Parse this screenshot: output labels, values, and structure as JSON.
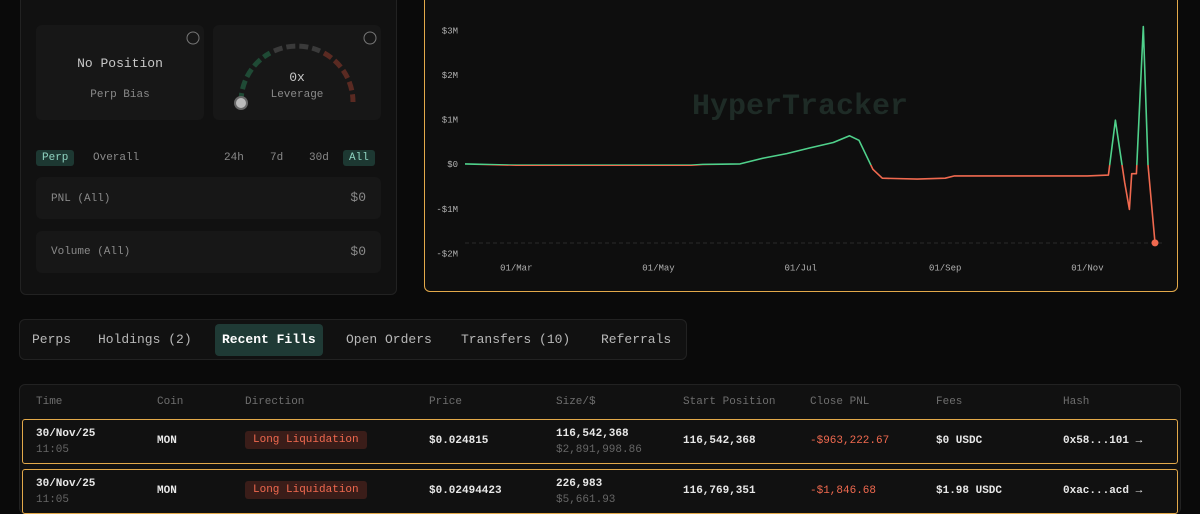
{
  "left_panel": {
    "position_card": {
      "title": "No Position",
      "label": "Perp Bias"
    },
    "leverage_card": {
      "value": "0x",
      "label": "Leverage"
    },
    "scope_tabs": [
      "Perp",
      "Overall"
    ],
    "range_tabs": [
      "24h",
      "7d",
      "30d",
      "All"
    ],
    "stats": [
      {
        "label": "PNL (All)",
        "value": "$0"
      },
      {
        "label": "Volume (All)",
        "value": "$0"
      }
    ]
  },
  "chart_data": {
    "type": "line",
    "watermark": "HyperTracker",
    "x": [
      "07/Feb",
      "01/Mar",
      "15/May",
      "20/May",
      "05/Jun",
      "15/Jun",
      "25/Jun",
      "05/Jul",
      "15/Jul",
      "22/Jul",
      "26/Jul",
      "01/Aug",
      "05/Aug",
      "20/Aug",
      "01/Sep",
      "05/Sep",
      "01/Oct",
      "01/Nov",
      "10/Nov",
      "13/Nov",
      "15/Nov",
      "17/Nov",
      "19/Nov",
      "20/Nov",
      "22/Nov",
      "25/Nov",
      "27/Nov",
      "30/Nov"
    ],
    "values": [
      20000,
      -10000,
      -10000,
      10000,
      20000,
      150000,
      250000,
      380000,
      500000,
      650000,
      550000,
      -100000,
      -300000,
      -320000,
      -300000,
      -250000,
      -250000,
      -250000,
      -230000,
      1000000,
      300000,
      -400000,
      -1000000,
      -200000,
      -200000,
      3100000,
      0,
      -1750000
    ],
    "positive_color": "#4fd18b",
    "negative_color": "#f0694f",
    "xlim": [
      "07/Feb",
      "30/Nov"
    ],
    "xticks": [
      "01/Mar",
      "01/May",
      "01/Jul",
      "01/Sep",
      "01/Nov"
    ],
    "ylim": [
      -2000000,
      3000000
    ],
    "yticks": [
      {
        "value": 3000000,
        "label": "$3M"
      },
      {
        "value": 2000000,
        "label": "$2M"
      },
      {
        "value": 1000000,
        "label": "$1M"
      },
      {
        "value": 0,
        "label": "$0"
      },
      {
        "value": -1000000,
        "label": "-$1M"
      },
      {
        "value": -2000000,
        "label": "-$2M"
      }
    ]
  },
  "tabs": [
    "Perps",
    "Holdings (2)",
    "Recent Fills",
    "Open Orders",
    "Transfers (10)",
    "Referrals"
  ],
  "active_tab": 2,
  "table": {
    "columns": [
      "Time",
      "Coin",
      "Direction",
      "Price",
      "Size/$",
      "Start Position",
      "Close PNL",
      "Fees",
      "Hash"
    ],
    "rows": [
      {
        "date": "30/Nov/25",
        "time": "11:05",
        "coin": "MON",
        "direction": "Long Liquidation",
        "price": "$0.024815",
        "size": "116,542,368",
        "size_usd": "$2,891,998.86",
        "start_position": "116,542,368",
        "close_pnl": "-$963,222.67",
        "fees": "$0 USDC",
        "hash": "0x58...101 →"
      },
      {
        "date": "30/Nov/25",
        "time": "11:05",
        "coin": "MON",
        "direction": "Long Liquidation",
        "price": "$0.02494423",
        "size": "226,983",
        "size_usd": "$5,661.93",
        "start_position": "116,769,351",
        "close_pnl": "-$1,846.68",
        "fees": "$1.98 USDC",
        "hash": "0xac...acd →"
      }
    ]
  }
}
